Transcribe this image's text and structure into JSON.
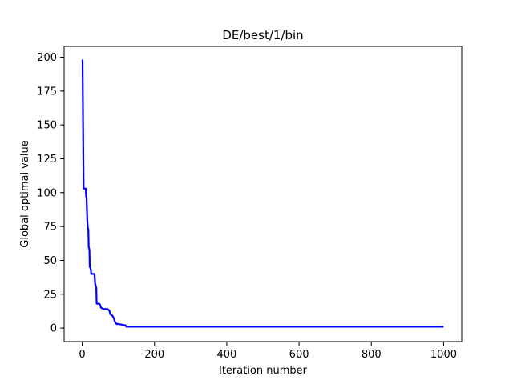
{
  "chart_data": {
    "type": "line",
    "title": "DE/best/1/bin",
    "xlabel": "Iteration number",
    "ylabel": "Global optimal value",
    "xlim": [
      -50,
      1050
    ],
    "ylim": [
      -10,
      208
    ],
    "xticks": [
      0,
      200,
      400,
      600,
      800,
      1000
    ],
    "yticks": [
      0,
      25,
      50,
      75,
      100,
      125,
      150,
      175,
      200
    ],
    "xtick_labels": [
      "0",
      "200",
      "400",
      "600",
      "800",
      "1000"
    ],
    "ytick_labels": [
      "0",
      "25",
      "50",
      "75",
      "100",
      "125",
      "150",
      "175",
      "200"
    ],
    "grid": false,
    "legend": "none",
    "series_color": "#0000ff",
    "series": [
      {
        "x": [
          0,
          1,
          2,
          3,
          4,
          5,
          10,
          11,
          12,
          14,
          16,
          17,
          18,
          20,
          21,
          22,
          24,
          25,
          30,
          34,
          36,
          37,
          38,
          39,
          40,
          45,
          47,
          50,
          52,
          60,
          65,
          70,
          75,
          78,
          80,
          84,
          88,
          90,
          95,
          100,
          110,
          120,
          122,
          125,
          130,
          200,
          400,
          600,
          800,
          1000
        ],
        "y": [
          198,
          198,
          165,
          130,
          103,
          103,
          103,
          97,
          97,
          80,
          73,
          73,
          60,
          58,
          45,
          45,
          43,
          40,
          40,
          40,
          32,
          32,
          30,
          30,
          18,
          18,
          18,
          17,
          15,
          14,
          14,
          14,
          13,
          10,
          10,
          9,
          7,
          5,
          3,
          3,
          2.5,
          2,
          1,
          1,
          1,
          1,
          1,
          1,
          1,
          1
        ]
      }
    ]
  }
}
